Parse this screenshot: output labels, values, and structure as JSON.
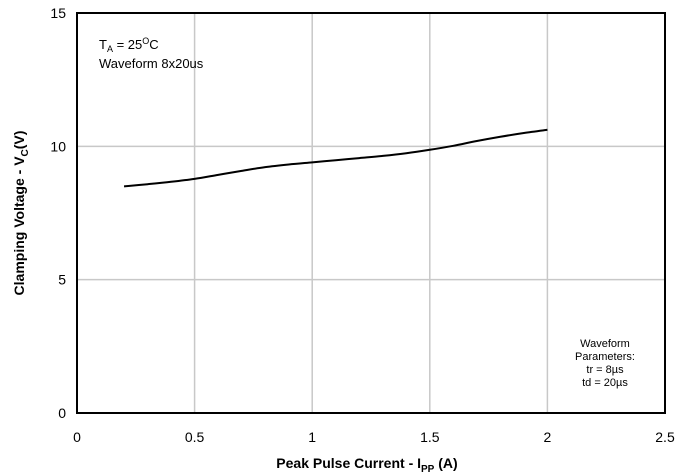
{
  "chart_data": {
    "type": "line",
    "xlabel": {
      "main": "Peak Pulse Current - I",
      "sub": "PP",
      "tail": " (A)"
    },
    "ylabel": {
      "main": "Clamping Voltage - V",
      "sub": "C",
      "tail": "(V)"
    },
    "xlim": [
      0,
      2.5
    ],
    "ylim": [
      0,
      15
    ],
    "x_ticks": [
      "0",
      "0.5",
      "1",
      "1.5",
      "2",
      "2.5"
    ],
    "y_ticks": [
      "0",
      "5",
      "10",
      "15"
    ],
    "grid": true,
    "series": [
      {
        "x": [
          0.2,
          0.3,
          0.4,
          0.5,
          0.6,
          0.7,
          0.8,
          0.9,
          1.0,
          1.1,
          1.2,
          1.3,
          1.4,
          1.5,
          1.6,
          1.7,
          1.8,
          1.9,
          2.0
        ],
        "y": [
          8.5,
          8.58,
          8.67,
          8.78,
          8.93,
          9.08,
          9.22,
          9.32,
          9.4,
          9.48,
          9.56,
          9.64,
          9.74,
          9.87,
          10.02,
          10.2,
          10.36,
          10.5,
          10.62
        ],
        "color": "#000000"
      }
    ],
    "annotations": {
      "condition": {
        "ta_main": "T",
        "ta_sub": "A",
        "ta_value": " = 25",
        "ta_deg": "O",
        "ta_unit": "C",
        "waveform": "Waveform 8x20us"
      },
      "parameters": [
        "Waveform",
        "Parameters:",
        "tr = 8µs",
        "td = 20µs"
      ]
    }
  }
}
